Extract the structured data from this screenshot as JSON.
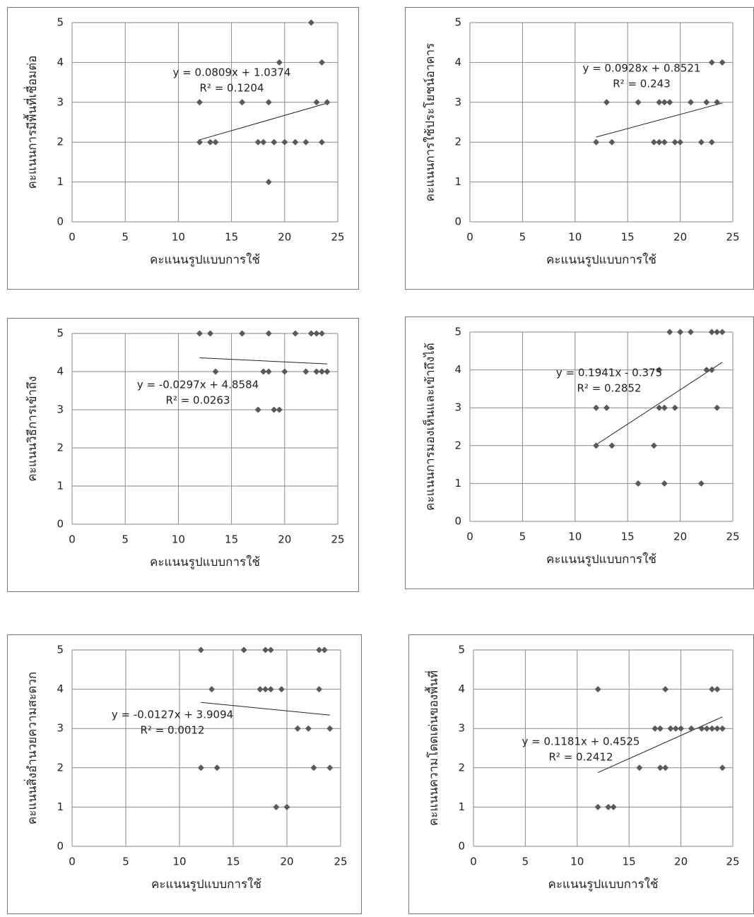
{
  "chart_data": [
    {
      "type": "scatter",
      "x_label": "คะแนนรูปแบบการใช้",
      "y_label": "คะแนนการมีพื้นที่เชื่อมต่อ",
      "equation": "y = 0.0809x + 1.0374",
      "r_squared": "R² = 0.1204",
      "x": [
        12,
        12,
        13,
        13.5,
        16,
        17.5,
        18,
        18.5,
        18.5,
        19,
        19.5,
        20,
        21,
        22,
        22.5,
        23,
        23.5,
        23.5,
        24
      ],
      "values": [
        3,
        2,
        2,
        2,
        3,
        2,
        2,
        3,
        1,
        2,
        4,
        2,
        2,
        2,
        5,
        3,
        4,
        2,
        3
      ],
      "color": "#595959",
      "xlim": [
        0,
        25
      ],
      "xticks": [
        0,
        5,
        10,
        15,
        20,
        25
      ],
      "ylim": [
        0,
        5
      ],
      "yticks": [
        0,
        1,
        2,
        3,
        4,
        5
      ],
      "grid": true,
      "trendline": true
    },
    {
      "type": "scatter",
      "x_label": "คะแนนรูปแบบการใช้",
      "y_label": "คะแนนการใช้ประโยชน์อาคาร",
      "equation": "y = 0.0928x + 0.8521",
      "r_squared": "R² = 0.243",
      "x": [
        12,
        13,
        13.5,
        16,
        17.5,
        18,
        18,
        18.5,
        18.5,
        19,
        19.5,
        20,
        21,
        22,
        22.5,
        23,
        23,
        23.5,
        24
      ],
      "values": [
        2,
        3,
        2,
        3,
        2,
        3,
        2,
        3,
        2,
        3,
        2,
        2,
        3,
        2,
        3,
        4,
        2,
        3,
        4
      ],
      "color": "#595959",
      "xlim": [
        0,
        25
      ],
      "xticks": [
        0,
        5,
        10,
        15,
        20,
        25
      ],
      "ylim": [
        0,
        5
      ],
      "yticks": [
        0,
        1,
        2,
        3,
        4,
        5
      ],
      "grid": true,
      "trendline": true
    },
    {
      "type": "scatter",
      "x_label": "คะแนนรูปแบบการใช้",
      "y_label": "คะแนนวิธีการเข้าถึง",
      "equation": "y = -0.0297x + 4.8584",
      "r_squared": "R² = 0.0263",
      "x": [
        12,
        13,
        13.5,
        16,
        17.5,
        18,
        18.5,
        18.5,
        19,
        19.5,
        20,
        21,
        22,
        22.5,
        23,
        23,
        23.5,
        23.5,
        24
      ],
      "values": [
        5,
        5,
        4,
        5,
        3,
        4,
        5,
        4,
        3,
        3,
        4,
        5,
        4,
        5,
        5,
        4,
        5,
        4,
        4
      ],
      "color": "#595959",
      "xlim": [
        0,
        25
      ],
      "xticks": [
        0,
        5,
        10,
        15,
        20,
        25
      ],
      "ylim": [
        0,
        5
      ],
      "yticks": [
        0,
        1,
        2,
        3,
        4,
        5
      ],
      "grid": true,
      "trendline": true
    },
    {
      "type": "scatter",
      "x_label": "คะแนนรูปแบบการใช้",
      "y_label": "คะแนนการมองเห็นและเข้าถึงได้",
      "equation": "y = 0.1941x - 0.375",
      "r_squared": "R² = 0.2852",
      "x": [
        12,
        12,
        13,
        13.5,
        16,
        17.5,
        18,
        18,
        18.5,
        18.5,
        19,
        19.5,
        20,
        21,
        22,
        22.5,
        23,
        23,
        23.5,
        23.5,
        24
      ],
      "values": [
        3,
        2,
        3,
        2,
        1,
        2,
        4,
        3,
        3,
        1,
        5,
        3,
        5,
        5,
        1,
        4,
        5,
        4,
        5,
        3,
        5
      ],
      "color": "#595959",
      "xlim": [
        0,
        25
      ],
      "xticks": [
        0,
        5,
        10,
        15,
        20,
        25
      ],
      "ylim": [
        0,
        5
      ],
      "yticks": [
        0,
        1,
        2,
        3,
        4,
        5
      ],
      "grid": true,
      "trendline": true
    },
    {
      "type": "scatter",
      "x_label": "คะแนนรูปแบบการใช้",
      "y_label": "คะแนนสิ่งอำนวยความสะดวก",
      "equation": "y = -0.0127x + 3.9094",
      "r_squared": "R² = 0.0012",
      "x": [
        12,
        12,
        13,
        13.5,
        16,
        17.5,
        18,
        18,
        18.5,
        18.5,
        19,
        19.5,
        20,
        21,
        22,
        22.5,
        23,
        23,
        23.5,
        24,
        24
      ],
      "values": [
        5,
        2,
        4,
        2,
        5,
        4,
        5,
        4,
        5,
        4,
        1,
        4,
        1,
        3,
        3,
        2,
        5,
        4,
        5,
        3,
        2
      ],
      "color": "#595959",
      "xlim": [
        0,
        25
      ],
      "xticks": [
        0,
        5,
        10,
        15,
        20,
        25
      ],
      "ylim": [
        0,
        5
      ],
      "yticks": [
        0,
        1,
        2,
        3,
        4,
        5
      ],
      "grid": true,
      "trendline": true
    },
    {
      "type": "scatter",
      "x_label": "คะแนนรูปแบบการใช้",
      "y_label": "คะแนนความโดดเด่นของพื้นที่",
      "equation": "y = 0.1181x + 0.4525",
      "r_squared": "R² = 0.2412",
      "x": [
        12,
        12,
        13,
        13.5,
        16,
        17.5,
        18,
        18,
        18.5,
        18.5,
        19,
        19.5,
        20,
        21,
        22,
        22.5,
        23,
        23,
        23.5,
        23.5,
        24,
        24
      ],
      "values": [
        4,
        1,
        1,
        1,
        2,
        3,
        3,
        2,
        4,
        2,
        3,
        3,
        3,
        3,
        3,
        3,
        4,
        3,
        4,
        3,
        3,
        2
      ],
      "color": "#595959",
      "xlim": [
        0,
        25
      ],
      "xticks": [
        0,
        5,
        10,
        15,
        20,
        25
      ],
      "ylim": [
        0,
        5
      ],
      "yticks": [
        0,
        1,
        2,
        3,
        4,
        5
      ],
      "grid": true,
      "trendline": true
    }
  ]
}
